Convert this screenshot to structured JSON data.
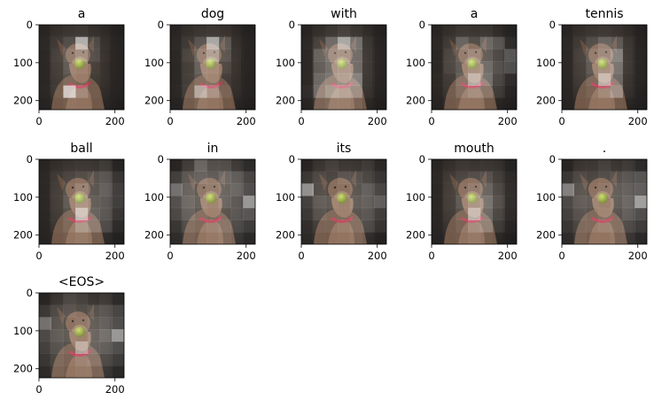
{
  "chart_data": {
    "type": "heatmap",
    "description_panels": 11,
    "shared_axes": {
      "xlim": [
        0,
        224
      ],
      "ylim": [
        224,
        0
      ],
      "xticks": [
        0,
        200
      ],
      "yticks": [
        0,
        100,
        200
      ]
    },
    "panels": [
      {
        "title": "a",
        "attention": [
          [
            0.05,
            0.06,
            0.08,
            0.1,
            0.06,
            0.05,
            0.04
          ],
          [
            0.06,
            0.1,
            0.2,
            0.85,
            0.2,
            0.06,
            0.05
          ],
          [
            0.05,
            0.12,
            0.3,
            0.45,
            0.2,
            0.05,
            0.04
          ],
          [
            0.04,
            0.1,
            0.25,
            0.2,
            0.1,
            0.04,
            0.04
          ],
          [
            0.05,
            0.1,
            0.2,
            0.15,
            0.08,
            0.05,
            0.04
          ],
          [
            0.06,
            0.12,
            0.95,
            0.3,
            0.1,
            0.05,
            0.05
          ],
          [
            0.05,
            0.06,
            0.1,
            0.08,
            0.06,
            0.05,
            0.04
          ]
        ]
      },
      {
        "title": "dog",
        "attention": [
          [
            0.05,
            0.06,
            0.08,
            0.1,
            0.08,
            0.05,
            0.04
          ],
          [
            0.06,
            0.1,
            0.25,
            0.8,
            0.3,
            0.06,
            0.05
          ],
          [
            0.05,
            0.15,
            0.35,
            0.6,
            0.25,
            0.06,
            0.04
          ],
          [
            0.04,
            0.1,
            0.3,
            0.3,
            0.15,
            0.05,
            0.04
          ],
          [
            0.05,
            0.12,
            0.25,
            0.25,
            0.1,
            0.05,
            0.04
          ],
          [
            0.06,
            0.15,
            0.7,
            0.4,
            0.15,
            0.06,
            0.05
          ],
          [
            0.05,
            0.08,
            0.15,
            0.1,
            0.06,
            0.05,
            0.04
          ]
        ]
      },
      {
        "title": "with",
        "attention": [
          [
            0.05,
            0.06,
            0.1,
            0.15,
            0.1,
            0.06,
            0.04
          ],
          [
            0.06,
            0.15,
            0.4,
            0.8,
            0.45,
            0.1,
            0.05
          ],
          [
            0.05,
            0.35,
            0.45,
            0.5,
            0.4,
            0.1,
            0.05
          ],
          [
            0.05,
            0.3,
            0.4,
            0.45,
            0.4,
            0.1,
            0.05
          ],
          [
            0.06,
            0.4,
            0.45,
            0.5,
            0.55,
            0.1,
            0.05
          ],
          [
            0.1,
            0.45,
            0.6,
            0.55,
            0.5,
            0.1,
            0.05
          ],
          [
            0.06,
            0.15,
            0.2,
            0.2,
            0.15,
            0.06,
            0.04
          ]
        ]
      },
      {
        "title": "a",
        "attention": [
          [
            0.05,
            0.06,
            0.1,
            0.08,
            0.1,
            0.06,
            0.05
          ],
          [
            0.06,
            0.1,
            0.35,
            0.2,
            0.4,
            0.3,
            0.1
          ],
          [
            0.05,
            0.15,
            0.3,
            0.4,
            0.3,
            0.2,
            0.35
          ],
          [
            0.05,
            0.15,
            0.25,
            0.35,
            0.4,
            0.25,
            0.3
          ],
          [
            0.06,
            0.1,
            0.3,
            0.7,
            0.45,
            0.2,
            0.1
          ],
          [
            0.06,
            0.1,
            0.25,
            0.35,
            0.3,
            0.15,
            0.06
          ],
          [
            0.05,
            0.06,
            0.1,
            0.1,
            0.08,
            0.05,
            0.04
          ]
        ]
      },
      {
        "title": "tennis",
        "attention": [
          [
            0.05,
            0.06,
            0.08,
            0.1,
            0.08,
            0.06,
            0.04
          ],
          [
            0.06,
            0.1,
            0.2,
            0.35,
            0.3,
            0.1,
            0.05
          ],
          [
            0.05,
            0.12,
            0.3,
            0.4,
            0.55,
            0.1,
            0.05
          ],
          [
            0.05,
            0.1,
            0.25,
            0.35,
            0.45,
            0.1,
            0.05
          ],
          [
            0.05,
            0.1,
            0.2,
            0.75,
            0.4,
            0.08,
            0.05
          ],
          [
            0.05,
            0.08,
            0.15,
            0.3,
            0.5,
            0.08,
            0.04
          ],
          [
            0.05,
            0.06,
            0.08,
            0.1,
            0.08,
            0.05,
            0.04
          ]
        ]
      },
      {
        "title": "ball",
        "attention": [
          [
            0.05,
            0.06,
            0.08,
            0.1,
            0.1,
            0.15,
            0.06
          ],
          [
            0.06,
            0.1,
            0.15,
            0.2,
            0.25,
            0.3,
            0.15
          ],
          [
            0.05,
            0.1,
            0.2,
            0.35,
            0.25,
            0.35,
            0.2
          ],
          [
            0.05,
            0.1,
            0.25,
            0.4,
            0.3,
            0.3,
            0.2
          ],
          [
            0.05,
            0.1,
            0.2,
            0.85,
            0.35,
            0.3,
            0.15
          ],
          [
            0.05,
            0.1,
            0.2,
            0.45,
            0.35,
            0.25,
            0.1
          ],
          [
            0.05,
            0.06,
            0.1,
            0.15,
            0.1,
            0.08,
            0.05
          ]
        ]
      },
      {
        "title": "in",
        "attention": [
          [
            0.05,
            0.15,
            0.4,
            0.25,
            0.25,
            0.15,
            0.1
          ],
          [
            0.2,
            0.3,
            0.35,
            0.3,
            0.4,
            0.35,
            0.25
          ],
          [
            0.5,
            0.35,
            0.25,
            0.3,
            0.35,
            0.4,
            0.3
          ],
          [
            0.3,
            0.4,
            0.3,
            0.25,
            0.35,
            0.3,
            0.75
          ],
          [
            0.25,
            0.35,
            0.25,
            0.2,
            0.25,
            0.3,
            0.35
          ],
          [
            0.15,
            0.25,
            0.2,
            0.25,
            0.3,
            0.25,
            0.2
          ],
          [
            0.1,
            0.15,
            0.1,
            0.15,
            0.2,
            0.15,
            0.1
          ]
        ]
      },
      {
        "title": "its",
        "attention": [
          [
            0.05,
            0.1,
            0.15,
            0.1,
            0.1,
            0.15,
            0.08
          ],
          [
            0.15,
            0.2,
            0.15,
            0.25,
            0.25,
            0.2,
            0.15
          ],
          [
            0.7,
            0.2,
            0.15,
            0.2,
            0.25,
            0.35,
            0.25
          ],
          [
            0.2,
            0.3,
            0.25,
            0.2,
            0.3,
            0.35,
            0.4
          ],
          [
            0.15,
            0.25,
            0.2,
            0.2,
            0.25,
            0.3,
            0.2
          ],
          [
            0.1,
            0.15,
            0.15,
            0.2,
            0.25,
            0.25,
            0.15
          ],
          [
            0.08,
            0.1,
            0.08,
            0.1,
            0.15,
            0.1,
            0.06
          ]
        ]
      },
      {
        "title": "mouth",
        "attention": [
          [
            0.05,
            0.06,
            0.1,
            0.08,
            0.1,
            0.1,
            0.05
          ],
          [
            0.06,
            0.1,
            0.15,
            0.2,
            0.25,
            0.15,
            0.08
          ],
          [
            0.05,
            0.1,
            0.2,
            0.3,
            0.35,
            0.2,
            0.1
          ],
          [
            0.05,
            0.1,
            0.25,
            0.4,
            0.45,
            0.25,
            0.1
          ],
          [
            0.05,
            0.1,
            0.2,
            0.75,
            0.4,
            0.2,
            0.08
          ],
          [
            0.05,
            0.08,
            0.15,
            0.35,
            0.4,
            0.15,
            0.06
          ],
          [
            0.05,
            0.06,
            0.08,
            0.15,
            0.1,
            0.06,
            0.04
          ]
        ]
      },
      {
        "title": ".",
        "attention": [
          [
            0.05,
            0.1,
            0.1,
            0.15,
            0.1,
            0.15,
            0.1
          ],
          [
            0.15,
            0.2,
            0.15,
            0.2,
            0.25,
            0.3,
            0.35
          ],
          [
            0.6,
            0.25,
            0.2,
            0.25,
            0.3,
            0.35,
            0.4
          ],
          [
            0.25,
            0.3,
            0.25,
            0.2,
            0.3,
            0.4,
            0.8
          ],
          [
            0.2,
            0.25,
            0.2,
            0.25,
            0.25,
            0.35,
            0.3
          ],
          [
            0.15,
            0.2,
            0.2,
            0.25,
            0.25,
            0.25,
            0.2
          ],
          [
            0.1,
            0.15,
            0.1,
            0.1,
            0.15,
            0.15,
            0.1
          ]
        ]
      },
      {
        "title": "<EOS>",
        "attention": [
          [
            0.05,
            0.1,
            0.2,
            0.15,
            0.1,
            0.15,
            0.1
          ],
          [
            0.15,
            0.2,
            0.25,
            0.2,
            0.25,
            0.3,
            0.25
          ],
          [
            0.5,
            0.25,
            0.2,
            0.25,
            0.3,
            0.35,
            0.3
          ],
          [
            0.25,
            0.3,
            0.25,
            0.2,
            0.35,
            0.45,
            0.75
          ],
          [
            0.2,
            0.25,
            0.2,
            0.65,
            0.35,
            0.35,
            0.3
          ],
          [
            0.15,
            0.2,
            0.15,
            0.25,
            0.3,
            0.25,
            0.2
          ],
          [
            0.1,
            0.15,
            0.1,
            0.15,
            0.15,
            0.15,
            0.1
          ]
        ]
      }
    ]
  }
}
